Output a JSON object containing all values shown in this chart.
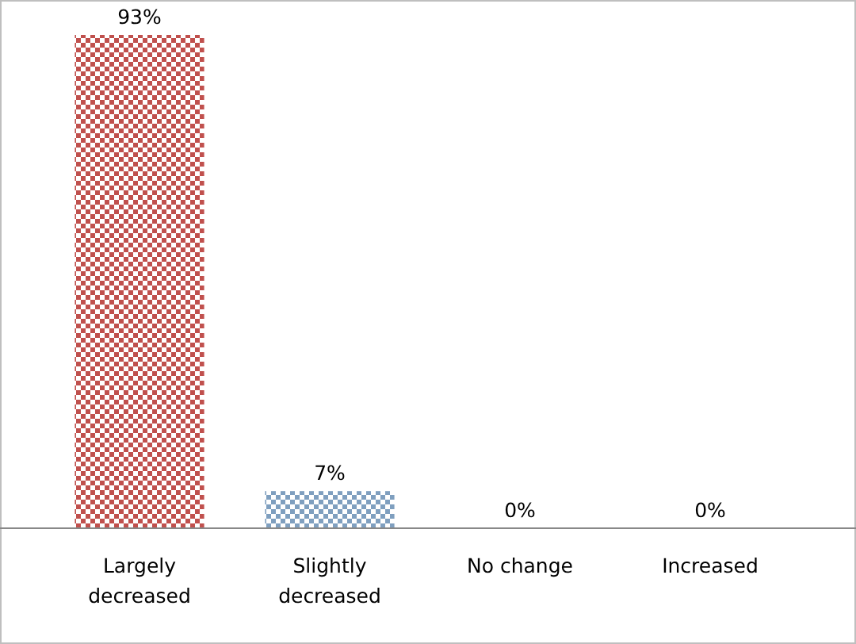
{
  "chart_data": {
    "type": "bar",
    "categories": [
      "Largely decreased",
      "Slightly decreased",
      "No change",
      "Increased"
    ],
    "values": [
      93,
      7,
      0,
      0
    ],
    "colors": [
      "#c0504d",
      "#7f9fbf",
      "#c0504d",
      "#c0504d"
    ],
    "value_labels": [
      "93%",
      "7%",
      "0%",
      "0%"
    ]
  }
}
